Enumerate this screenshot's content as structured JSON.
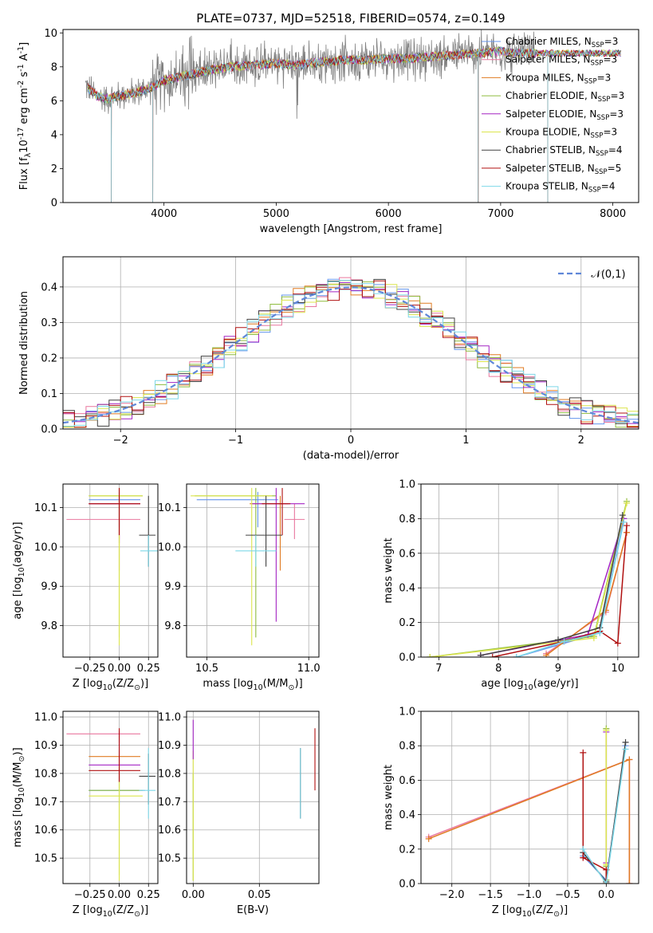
{
  "figure": {
    "title": "PLATE=0737, MJD=52518, FIBERID=0574, z=0.149"
  },
  "models": [
    {
      "name": "Chabrier MILES, N$_{SSP}$=3",
      "label": "Chabrier MILES, N",
      "sub": "SSP",
      "suffix": "=3",
      "color": "#6495ed"
    },
    {
      "name": "Salpeter MILES, N$_{SSP}$=3",
      "label": "Salpeter MILES, N",
      "sub": "SSP",
      "suffix": "=3",
      "color": "#e9779e"
    },
    {
      "name": "Kroupa MILES, N$_{SSP}$=3",
      "label": "Kroupa MILES, N",
      "sub": "SSP",
      "suffix": "=3",
      "color": "#e07b22"
    },
    {
      "name": "Chabrier ELODIE, N$_{SSP}$=3",
      "label": "Chabrier ELODIE, N",
      "sub": "SSP",
      "suffix": "=3",
      "color": "#8fbc3f"
    },
    {
      "name": "Salpeter ELODIE, N$_{SSP}$=3",
      "label": "Salpeter ELODIE, N",
      "sub": "SSP",
      "suffix": "=3",
      "color": "#a424c4"
    },
    {
      "name": "Kroupa ELODIE, N$_{SSP}$=3",
      "label": "Kroupa ELODIE, N",
      "sub": "SSP",
      "suffix": "=3",
      "color": "#dce54d"
    },
    {
      "name": "Chabrier STELIB, N$_{SSP}$=4",
      "label": "Chabrier STELIB, N",
      "sub": "SSP",
      "suffix": "=4",
      "color": "#404040"
    },
    {
      "name": "Salpeter STELIB, N$_{SSP}$=5",
      "label": "Salpeter STELIB, N",
      "sub": "SSP",
      "suffix": "=5",
      "color": "#b01010"
    },
    {
      "name": "Kroupa STELIB, N$_{SSP}$=4",
      "label": "Kroupa STELIB, N",
      "sub": "SSP",
      "suffix": "=4",
      "color": "#7ed8e8"
    }
  ],
  "chart_data": [
    {
      "id": "spectrum",
      "type": "line",
      "xlabel": "wavelength [Angstrom, rest frame]",
      "ylabel": "Flux [f$_\\lambda$10$^{-17}$ erg cm$^{-2}$ s$^{-1}$ A$^{-1}$]",
      "xlim": [
        3100,
        8230
      ],
      "ylim": [
        0,
        10.2
      ],
      "xticks": [
        4000,
        5000,
        6000,
        7000,
        8000
      ],
      "yticks": [
        0,
        2,
        4,
        6,
        8,
        10
      ],
      "data_color": "#808080",
      "data_continuum": {
        "x": [
          3300,
          3400,
          3500,
          3600,
          3700,
          3800,
          3900,
          4000,
          4200,
          4400,
          4600,
          4800,
          5000,
          5200,
          5400,
          5600,
          5800,
          6000,
          6200,
          6400,
          6600,
          6800,
          7000,
          7200,
          7300
        ],
        "y": [
          6.9,
          6.3,
          6.1,
          6.3,
          6.4,
          6.6,
          6.8,
          7.2,
          7.5,
          7.8,
          8.0,
          8.1,
          8.2,
          8.1,
          8.3,
          8.4,
          8.4,
          8.5,
          8.5,
          8.6,
          8.7,
          8.8,
          8.9,
          8.8,
          8.8
        ]
      },
      "model_range": [
        3320,
        8070
      ],
      "model_drops": [
        3530,
        3900,
        6800,
        7420
      ],
      "grid": false,
      "legend": "right"
    },
    {
      "id": "residuals",
      "type": "line",
      "xlabel": "(data-model)/error",
      "ylabel": "Normed distribution",
      "xlim": [
        -2.5,
        2.5
      ],
      "ylim": [
        0,
        0.485
      ],
      "xticks": [
        -2,
        -1,
        0,
        1,
        2
      ],
      "yticks": [
        0.0,
        0.1,
        0.2,
        0.3,
        0.4
      ],
      "grid": true,
      "gaussian_label": "$\\mathcal{N}(0,1)$",
      "gaussian_color": "#5f87d8",
      "hist_bin_width": 0.1,
      "hist_jitter": 0.035,
      "legend": "upper right"
    },
    {
      "id": "age-vs-Z",
      "type": "scatter",
      "xlabel": "Z [log$_{10}$(Z/Z$_\\odot$)]",
      "ylabel": "age  [log$_{10}$($age/yr$)]",
      "xlim": [
        -0.48,
        0.33
      ],
      "ylim": [
        9.72,
        10.16
      ],
      "xticks": [
        -0.25,
        0.0,
        0.25
      ],
      "yticks": [
        9.8,
        9.9,
        10.0,
        10.1
      ],
      "grid": true,
      "points": [
        {
          "model": 0,
          "x": 0.0,
          "y": 10.12,
          "xerr": [
            0.26,
            0.18
          ],
          "yerr": [
            0.07,
            0.02
          ]
        },
        {
          "model": 1,
          "x": 0.0,
          "y": 10.07,
          "xerr": [
            0.45,
            0.18
          ],
          "yerr": [
            0.05,
            0.04
          ]
        },
        {
          "model": 2,
          "x": 0.0,
          "y": 10.11,
          "xerr": [
            0.26,
            0.18
          ],
          "yerr": [
            0.17,
            0.02
          ]
        },
        {
          "model": 3,
          "x": 0.0,
          "y": 10.13,
          "xerr": [
            0.26,
            0.2
          ],
          "yerr": [
            0.36,
            0.02
          ]
        },
        {
          "model": 4,
          "x": 0.0,
          "y": 10.11,
          "xerr": [
            0.26,
            0.18
          ],
          "yerr": [
            0.1,
            0.04
          ]
        },
        {
          "model": 5,
          "x": 0.0,
          "y": 10.13,
          "xerr": [
            0.26,
            0.2
          ],
          "yerr": [
            0.38,
            0.02
          ]
        },
        {
          "model": 6,
          "x": 0.25,
          "y": 10.03,
          "xerr": [
            0.08,
            0.06
          ],
          "yerr": [
            0.08,
            0.1
          ]
        },
        {
          "model": 7,
          "x": 0.0,
          "y": 10.11,
          "xerr": [
            0.26,
            0.18
          ],
          "yerr": [
            0.08,
            0.04
          ]
        },
        {
          "model": 8,
          "x": 0.25,
          "y": 9.99,
          "xerr": [
            0.07,
            0.08
          ],
          "yerr": [
            0.04,
            0.04
          ]
        }
      ]
    },
    {
      "id": "age-vs-mass",
      "type": "scatter",
      "xlabel": "mass [log$_{10}$(M/M$_\\odot$)]",
      "ylabel": "",
      "xlim": [
        10.4,
        11.05
      ],
      "ylim": [
        9.72,
        10.16
      ],
      "xticks": [
        10.5,
        11.0
      ],
      "xticklabels": [
        "10.5",
        "11.0"
      ],
      "yticks": [
        9.8,
        9.9,
        10.0,
        10.1
      ],
      "grid": true,
      "points": [
        {
          "model": 0,
          "x": 10.75,
          "y": 10.12,
          "xerr": [
            0.3,
            0.1
          ],
          "yerr": [
            0.07,
            0.02
          ]
        },
        {
          "model": 1,
          "x": 10.93,
          "y": 10.07,
          "xerr": [
            0.05,
            0.05
          ],
          "yerr": [
            0.05,
            0.04
          ]
        },
        {
          "model": 2,
          "x": 10.86,
          "y": 10.11,
          "xerr": [
            0.15,
            0.04
          ],
          "yerr": [
            0.17,
            0.02
          ]
        },
        {
          "model": 3,
          "x": 10.74,
          "y": 10.13,
          "xerr": [
            0.3,
            0.1
          ],
          "yerr": [
            0.36,
            0.02
          ]
        },
        {
          "model": 4,
          "x": 10.84,
          "y": 10.11,
          "xerr": [
            0.12,
            0.14
          ],
          "yerr": [
            0.3,
            0.04
          ]
        },
        {
          "model": 5,
          "x": 10.72,
          "y": 10.13,
          "xerr": [
            0.3,
            0.1
          ],
          "yerr": [
            0.38,
            0.02
          ]
        },
        {
          "model": 6,
          "x": 10.79,
          "y": 10.03,
          "xerr": [
            0.1,
            0.08
          ],
          "yerr": [
            0.08,
            0.1
          ]
        },
        {
          "model": 7,
          "x": 10.87,
          "y": 10.11,
          "xerr": [
            0.1,
            0.04
          ],
          "yerr": [
            0.08,
            0.04
          ]
        },
        {
          "model": 8,
          "x": 10.74,
          "y": 9.99,
          "xerr": [
            0.1,
            0.1
          ],
          "yerr": [
            0.04,
            0.04
          ]
        }
      ]
    },
    {
      "id": "weight-vs-age",
      "type": "line",
      "xlabel": "age  [log$_{10}$($age/yr$)]",
      "ylabel": "mass weight",
      "xlim": [
        6.7,
        10.35
      ],
      "ylim": [
        0,
        1.0
      ],
      "xticks": [
        7,
        8,
        9,
        10
      ],
      "yticks": [
        0.0,
        0.2,
        0.4,
        0.6,
        0.8,
        1.0
      ],
      "grid": true,
      "series": [
        {
          "model": 0,
          "x": [
            8.3,
            9.7,
            10.1
          ],
          "y": [
            0.0,
            0.14,
            0.8
          ]
        },
        {
          "model": 1,
          "x": [
            8.8,
            9.8,
            10.15
          ],
          "y": [
            0.02,
            0.26,
            0.72
          ]
        },
        {
          "model": 2,
          "x": [
            8.8,
            9.8,
            10.15
          ],
          "y": [
            0.01,
            0.27,
            0.72
          ]
        },
        {
          "model": 3,
          "x": [
            6.85,
            9.6,
            10.15
          ],
          "y": [
            0.0,
            0.12,
            0.9
          ]
        },
        {
          "model": 4,
          "x": [
            7.7,
            9.5,
            10.1
          ],
          "y": [
            0.01,
            0.13,
            0.8
          ]
        },
        {
          "model": 5,
          "x": [
            6.85,
            9.6,
            10.15
          ],
          "y": [
            0.0,
            0.11,
            0.89
          ]
        },
        {
          "model": 6,
          "x": [
            7.7,
            9.0,
            9.7,
            10.08
          ],
          "y": [
            0.01,
            0.1,
            0.17,
            0.82
          ]
        },
        {
          "model": 7,
          "x": [
            7.9,
            9.1,
            9.7,
            10.0,
            10.15
          ],
          "y": [
            0.0,
            0.09,
            0.15,
            0.08,
            0.76
          ]
        },
        {
          "model": 8,
          "x": [
            8.3,
            9.1,
            9.7,
            10.1
          ],
          "y": [
            0.0,
            0.09,
            0.14,
            0.78
          ]
        }
      ]
    },
    {
      "id": "mass-vs-Z",
      "type": "scatter",
      "xlabel": "Z [log$_{10}$(Z/Z$_\\odot$)]",
      "ylabel": "mass [log$_{10}$($M/M_\\odot$)]",
      "xlim": [
        -0.48,
        0.33
      ],
      "ylim": [
        10.41,
        11.02
      ],
      "xticks": [
        -0.25,
        0.0,
        0.25
      ],
      "yticks": [
        10.5,
        10.6,
        10.7,
        10.8,
        10.9,
        11.0
      ],
      "grid": true,
      "points": [
        {
          "model": 0,
          "x": 0.0,
          "y": 10.74,
          "xerr": [
            0.26,
            0.22
          ],
          "yerr": [
            0.05,
            0.05
          ]
        },
        {
          "model": 1,
          "x": 0.0,
          "y": 10.94,
          "xerr": [
            0.45,
            0.18
          ],
          "yerr": [
            0.03,
            0.02
          ]
        },
        {
          "model": 2,
          "x": 0.0,
          "y": 10.86,
          "xerr": [
            0.26,
            0.18
          ],
          "yerr": [
            0.05,
            0.02
          ]
        },
        {
          "model": 3,
          "x": 0.0,
          "y": 10.74,
          "xerr": [
            0.26,
            0.2
          ],
          "yerr": [
            0.3,
            0.08
          ]
        },
        {
          "model": 4,
          "x": 0.0,
          "y": 10.83,
          "xerr": [
            0.26,
            0.18
          ],
          "yerr": [
            0.06,
            0.12
          ]
        },
        {
          "model": 5,
          "x": 0.0,
          "y": 10.72,
          "xerr": [
            0.26,
            0.2
          ],
          "yerr": [
            0.3,
            0.08
          ]
        },
        {
          "model": 6,
          "x": 0.25,
          "y": 10.79,
          "xerr": [
            0.08,
            0.06
          ],
          "yerr": [
            0.1,
            0.08
          ]
        },
        {
          "model": 7,
          "x": 0.0,
          "y": 10.81,
          "xerr": [
            0.26,
            0.18
          ],
          "yerr": [
            0.04,
            0.15
          ]
        },
        {
          "model": 8,
          "x": 0.25,
          "y": 10.74,
          "xerr": [
            0.08,
            0.06
          ],
          "yerr": [
            0.1,
            0.15
          ]
        }
      ]
    },
    {
      "id": "mass-vs-EBV",
      "type": "scatter",
      "xlabel": "E(B-V)",
      "ylabel": "",
      "xlim": [
        -0.005,
        0.095
      ],
      "ylim": [
        10.41,
        11.02
      ],
      "xticks": [
        0.0,
        0.05
      ],
      "xticklabels": [
        "0.00",
        "0.05"
      ],
      "yticks": [
        10.5,
        10.6,
        10.7,
        10.8,
        10.9,
        11.0
      ],
      "grid": true,
      "points": [
        {
          "model": 3,
          "x": 0.0,
          "y": 10.72,
          "yerr": [
            0.3,
            0.08
          ]
        },
        {
          "model": 5,
          "x": 0.0,
          "y": 10.7,
          "yerr": [
            0.28,
            0.18
          ]
        },
        {
          "model": 4,
          "x": 0.0,
          "y": 10.9,
          "yerr": [
            0.05,
            0.09
          ]
        },
        {
          "model": 6,
          "x": 0.081,
          "y": 10.79,
          "yerr": [
            0.15,
            0.1
          ]
        },
        {
          "model": 8,
          "x": 0.081,
          "y": 10.74,
          "yerr": [
            0.1,
            0.15
          ]
        },
        {
          "model": 7,
          "x": 0.092,
          "y": 10.85,
          "yerr": [
            0.11,
            0.11
          ]
        }
      ]
    },
    {
      "id": "weight-vs-Z",
      "type": "line",
      "xlabel": "Z [log$_{10}$(Z/Z$_\\odot$)]",
      "ylabel": "mass weight",
      "xlim": [
        -2.4,
        0.42
      ],
      "ylim": [
        0,
        1.0
      ],
      "xticks": [
        -2.0,
        -1.5,
        -1.0,
        -0.5,
        0.0
      ],
      "yticks": [
        0.0,
        0.2,
        0.4,
        0.6,
        0.8,
        1.0
      ],
      "grid": true,
      "series": [
        {
          "model": 0,
          "x": [
            -0.3,
            0.0,
            0.25
          ],
          "y": [
            0.16,
            0.02,
            0.8
          ]
        },
        {
          "model": 1,
          "x": [
            -2.3,
            0.3,
            0.3
          ],
          "y": [
            0.27,
            0.72,
            0.0
          ]
        },
        {
          "model": 2,
          "x": [
            -2.3,
            0.3,
            0.3
          ],
          "y": [
            0.26,
            0.72,
            0.0
          ]
        },
        {
          "model": 3,
          "x": [
            0.0,
            0.0,
            0.0
          ],
          "y": [
            0.1,
            0.9,
            0.02
          ]
        },
        {
          "model": 4,
          "x": [
            0.0,
            0.0
          ],
          "y": [
            0.12,
            0.88
          ]
        },
        {
          "model": 5,
          "x": [
            0.0,
            0.0,
            0.0
          ],
          "y": [
            0.11,
            0.89,
            0.0
          ]
        },
        {
          "model": 6,
          "x": [
            -0.3,
            0.0,
            0.25
          ],
          "y": [
            0.18,
            0.01,
            0.82
          ]
        },
        {
          "model": 7,
          "x": [
            -0.3,
            -0.3,
            0.0,
            0.0
          ],
          "y": [
            0.76,
            0.15,
            0.08,
            0.0
          ]
        },
        {
          "model": 8,
          "x": [
            -0.3,
            0.0,
            0.25
          ],
          "y": [
            0.2,
            0.0,
            0.78
          ]
        }
      ]
    }
  ]
}
